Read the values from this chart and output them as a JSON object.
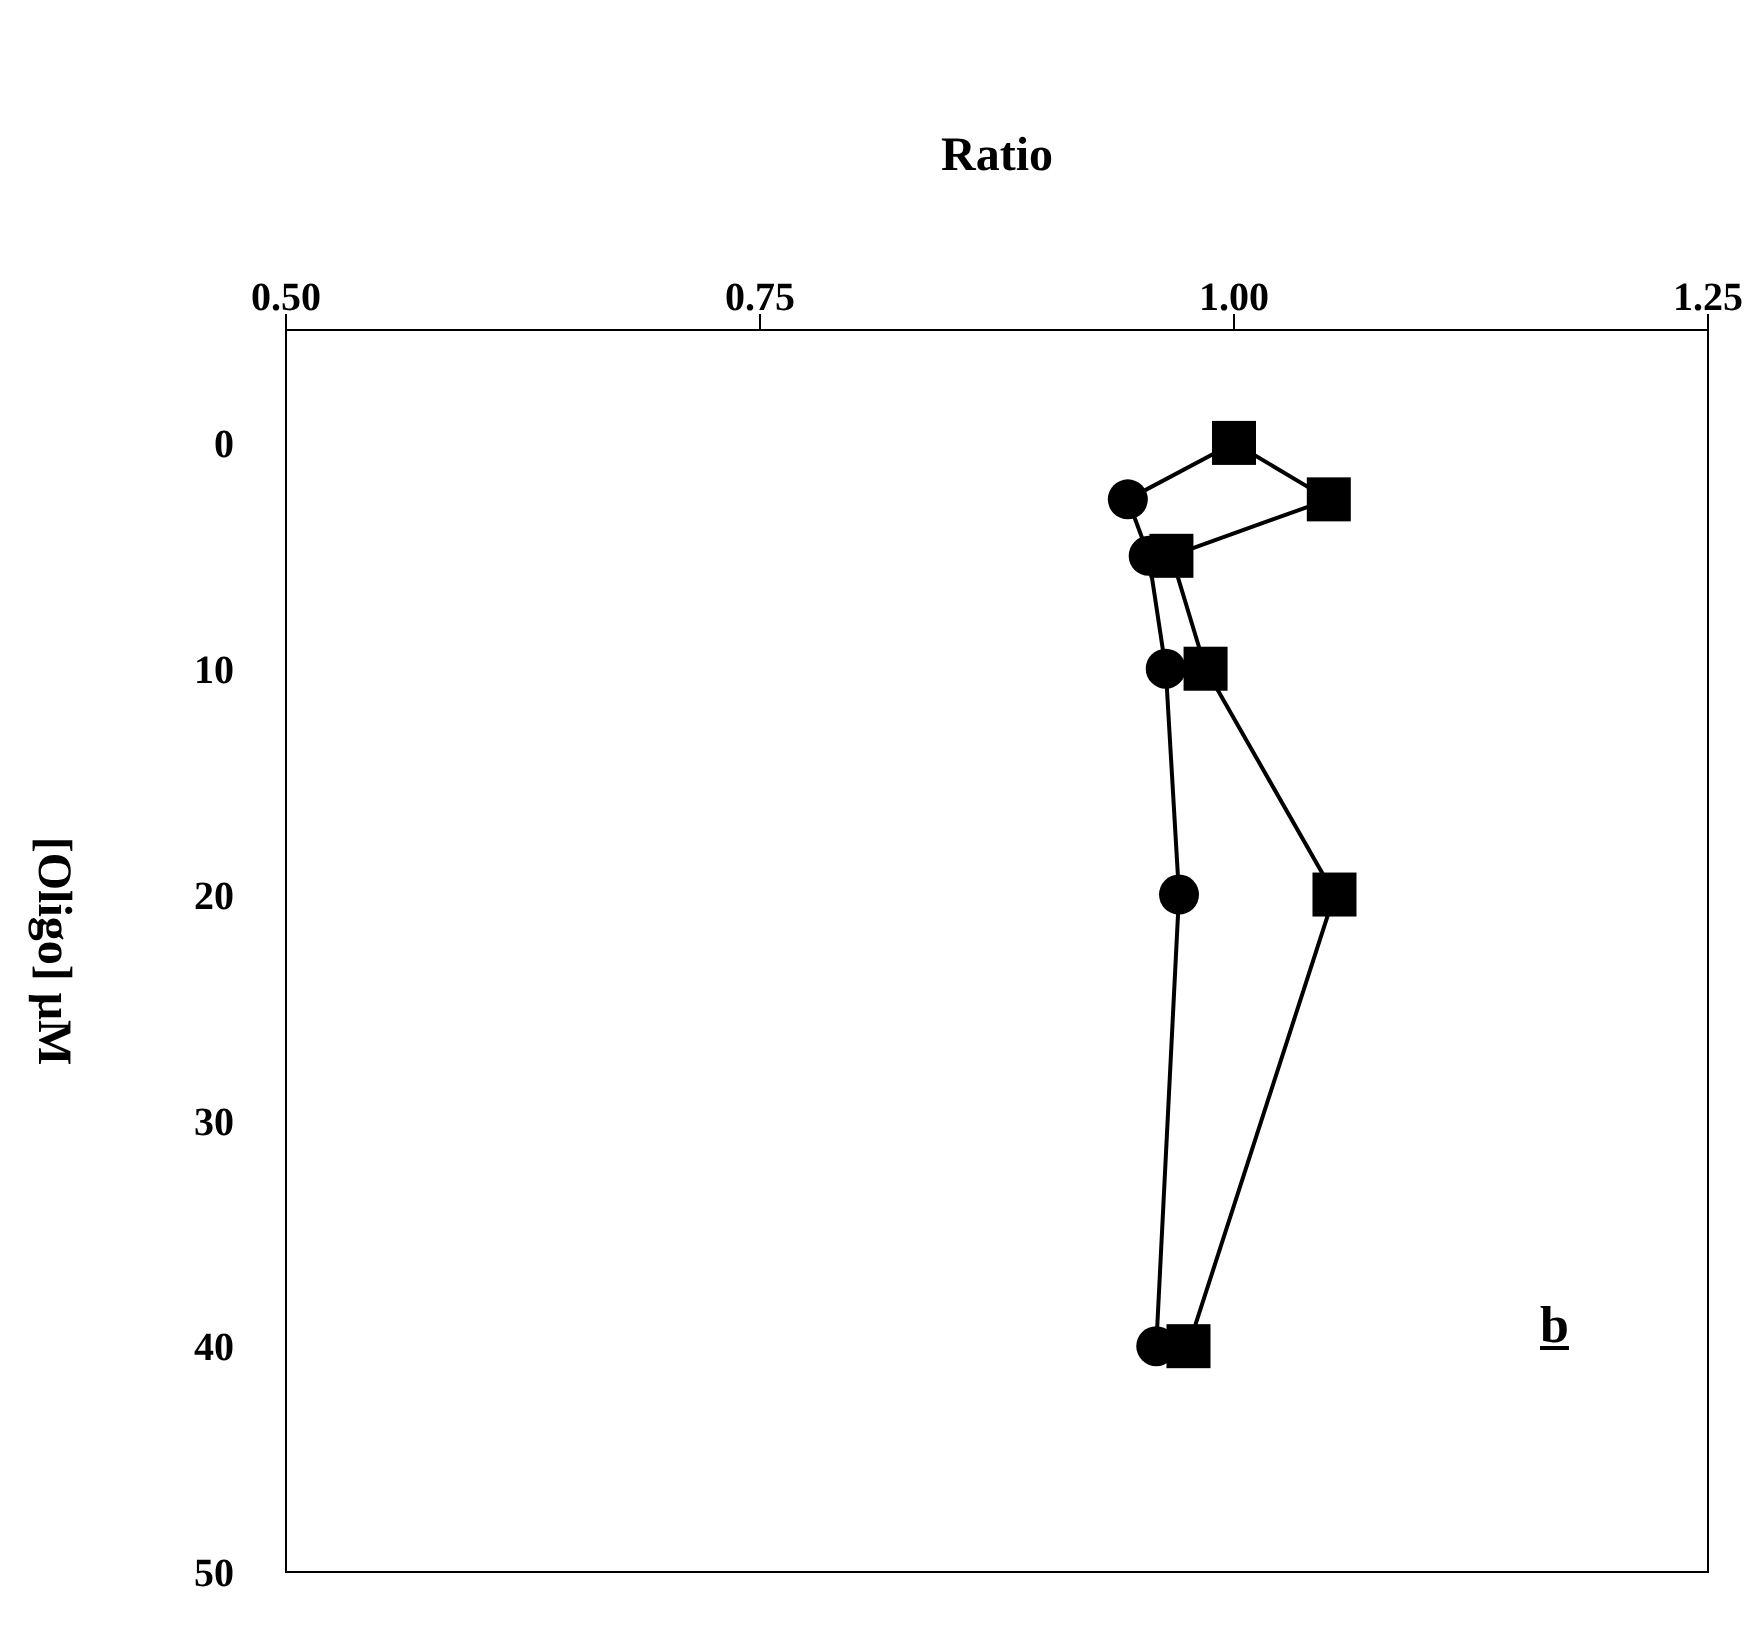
{
  "chart_data": {
    "type": "line",
    "xlabel": "Ratio",
    "ylabel": "[Oligo] μM",
    "series": [
      {
        "color": "#000000",
        "marker": "square",
        "x": [
          1.0,
          1.05,
          0.967,
          0.985,
          1.053,
          0.976
        ],
        "values": [
          0,
          2.5,
          5,
          10,
          20,
          40
        ]
      },
      {
        "color": "#000000",
        "marker": "circle",
        "x": [
          1.0,
          0.944,
          0.955,
          0.964,
          0.971,
          0.959
        ],
        "values": [
          0,
          2.5,
          5,
          10,
          20,
          40
        ]
      }
    ],
    "xlim": [
      0.5,
      1.25
    ],
    "xticks": [
      {
        "value": 0.5,
        "label": "0.50"
      },
      {
        "value": 0.75,
        "label": "0.75"
      },
      {
        "value": 1.0,
        "label": "1.00"
      },
      {
        "value": 1.25,
        "label": "1.25"
      }
    ],
    "ylim": [
      50,
      -5
    ],
    "yticks": [
      0,
      10,
      20,
      30,
      40,
      50
    ],
    "annotations": [
      "b"
    ],
    "grid": false,
    "legend": false
  }
}
